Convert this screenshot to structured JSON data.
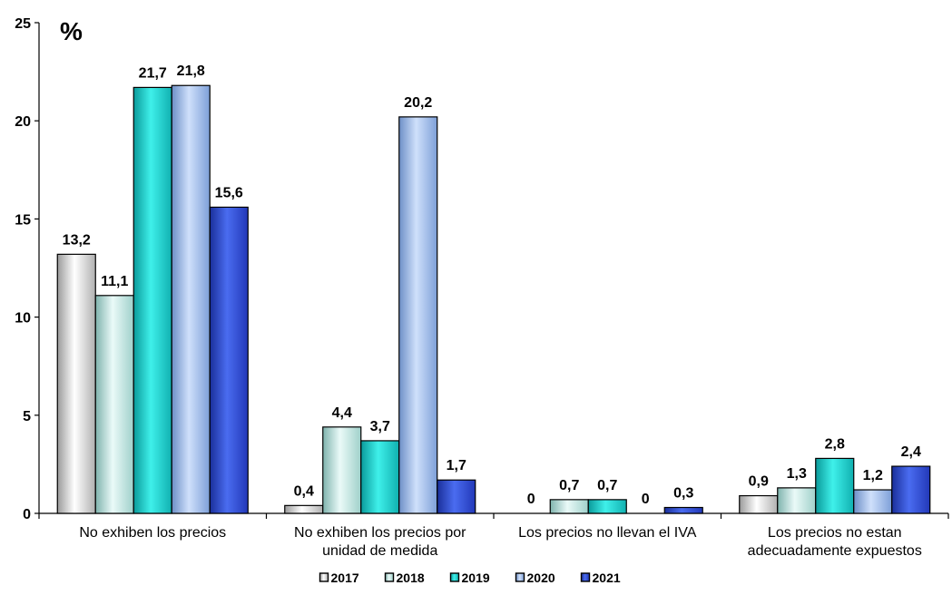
{
  "chart_data": {
    "type": "bar",
    "unit_label": "%",
    "ylim": [
      0,
      25
    ],
    "yticks": [
      "0",
      "5",
      "10",
      "15",
      "20",
      "25"
    ],
    "categories": [
      [
        "No exhiben los precios"
      ],
      [
        "No exhiben los precios por",
        "unidad de medida"
      ],
      [
        "Los precios no llevan el IVA"
      ],
      [
        "Los precios no estan",
        "adecuadamente expuestos"
      ]
    ],
    "series": [
      {
        "name": "2017",
        "color": "#d9d9d9",
        "values": [
          13.2,
          0.4,
          0,
          0.9
        ],
        "labels": [
          "13,2",
          "0,4",
          "0",
          "0,9"
        ]
      },
      {
        "name": "2018",
        "color": "#c6ece8",
        "values": [
          11.1,
          4.4,
          0.7,
          1.3
        ],
        "labels": [
          "11,1",
          "4,4",
          "0,7",
          "1,3"
        ]
      },
      {
        "name": "2019",
        "color": "#1fc9c9",
        "values": [
          21.7,
          3.7,
          0.7,
          2.8
        ],
        "labels": [
          "21,7",
          "3,7",
          "0,7",
          "2,8"
        ]
      },
      {
        "name": "2020",
        "color": "#95b3e6",
        "values": [
          21.8,
          20.2,
          0,
          1.2
        ],
        "labels": [
          "21,8",
          "20,2",
          "0",
          "1,2"
        ]
      },
      {
        "name": "2021",
        "color": "#2a4ad6",
        "values": [
          15.6,
          1.7,
          0.3,
          2.4
        ],
        "labels": [
          "15,6",
          "1,7",
          "0,3",
          "2,4"
        ]
      }
    ],
    "legend_position": "bottom",
    "grid": false
  }
}
